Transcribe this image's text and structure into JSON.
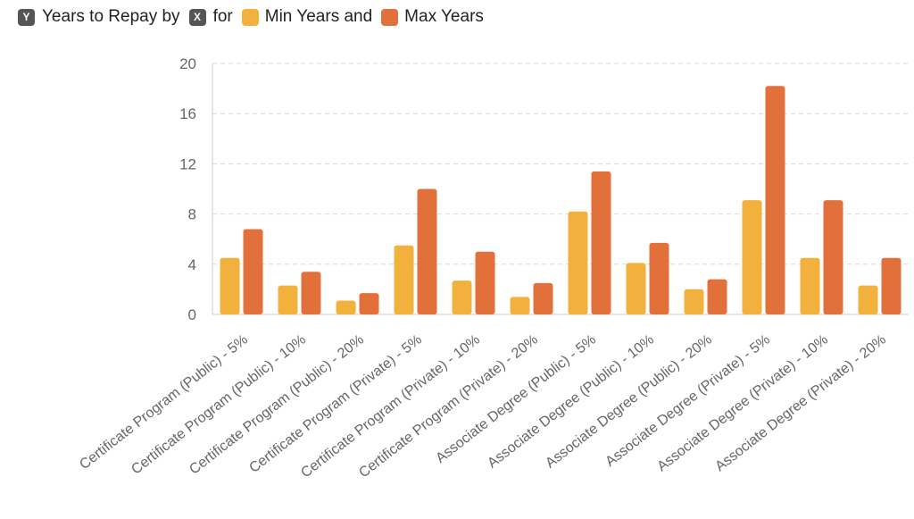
{
  "header": {
    "y_badge": "Y",
    "y_text": "Years to Repay by",
    "x_badge": "X",
    "x_text": "for",
    "series1_text": "Min Years and",
    "series2_text": "Max Years"
  },
  "colors": {
    "min": "#f2b13c",
    "max": "#e2703a",
    "badge": "#555555",
    "grid": "#d9d9d9",
    "axis": "#cccccc"
  },
  "chart_data": {
    "type": "bar",
    "categories": [
      "Certificate Program (Public) - 5%",
      "Certificate Program (Public) - 10%",
      "Certificate Program (Public) - 20%",
      "Certificate Program (Private) - 5%",
      "Certificate Program (Private) - 10%",
      "Certificate Program (Private) - 20%",
      "Associate Degree (Public) - 5%",
      "Associate Degree (Public) - 10%",
      "Associate Degree (Public) - 20%",
      "Associate Degree (Private) - 5%",
      "Associate Degree (Private) - 10%",
      "Associate Degree (Private) - 20%"
    ],
    "series": [
      {
        "name": "Min Years",
        "values": [
          4.5,
          2.3,
          1.1,
          5.5,
          2.7,
          1.4,
          8.2,
          4.1,
          2.0,
          9.1,
          4.5,
          2.3
        ]
      },
      {
        "name": "Max Years",
        "values": [
          6.8,
          3.4,
          1.7,
          10.0,
          5.0,
          2.5,
          11.4,
          5.7,
          2.8,
          18.2,
          9.1,
          4.5
        ]
      }
    ],
    "ylim": [
      0,
      20
    ],
    "yticks": [
      0,
      4,
      8,
      12,
      16,
      20
    ],
    "grid": true,
    "legend": "top-left"
  }
}
